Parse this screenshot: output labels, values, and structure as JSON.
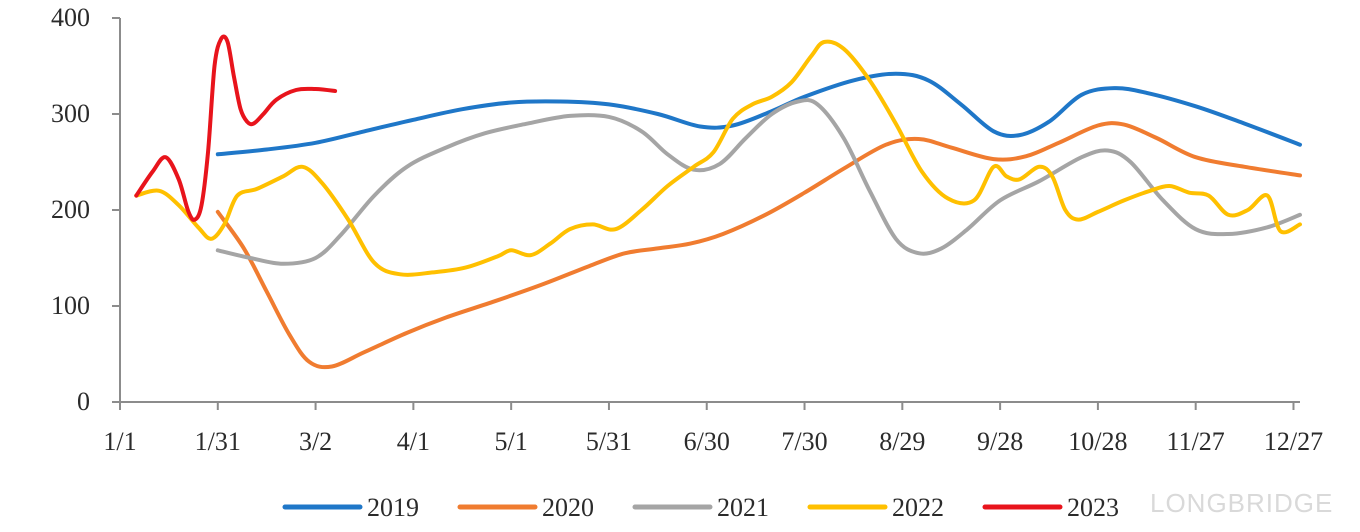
{
  "chart_data": {
    "type": "line",
    "title": "",
    "xlabel": "",
    "ylabel": "",
    "x_tick_labels": [
      "1/1",
      "1/31",
      "3/2",
      "4/1",
      "5/1",
      "5/31",
      "6/30",
      "7/30",
      "8/29",
      "9/28",
      "10/28",
      "11/27",
      "12/27"
    ],
    "x_tick_days": [
      0,
      30,
      60,
      90,
      120,
      150,
      180,
      210,
      240,
      270,
      300,
      330,
      360
    ],
    "xlim": [
      0,
      362
    ],
    "ylim": [
      0,
      400
    ],
    "y_ticks": [
      0,
      100,
      200,
      300,
      400
    ],
    "y_tick_labels": [
      "0",
      "100",
      "200",
      "300",
      "400"
    ],
    "grid": false,
    "legend_position": "bottom",
    "series": [
      {
        "name": "2019",
        "color": "#1F77C8",
        "points": [
          [
            30,
            258
          ],
          [
            45,
            263
          ],
          [
            60,
            270
          ],
          [
            75,
            282
          ],
          [
            90,
            294
          ],
          [
            105,
            305
          ],
          [
            120,
            312
          ],
          [
            135,
            313
          ],
          [
            150,
            310
          ],
          [
            165,
            300
          ],
          [
            178,
            287
          ],
          [
            188,
            288
          ],
          [
            200,
            303
          ],
          [
            210,
            318
          ],
          [
            225,
            335
          ],
          [
            238,
            342
          ],
          [
            248,
            335
          ],
          [
            258,
            310
          ],
          [
            268,
            282
          ],
          [
            276,
            278
          ],
          [
            285,
            292
          ],
          [
            295,
            320
          ],
          [
            305,
            327
          ],
          [
            315,
            322
          ],
          [
            330,
            308
          ],
          [
            345,
            290
          ],
          [
            362,
            268
          ]
        ]
      },
      {
        "name": "2020",
        "color": "#F07C30",
        "points": [
          [
            30,
            198
          ],
          [
            38,
            160
          ],
          [
            45,
            115
          ],
          [
            52,
            70
          ],
          [
            58,
            42
          ],
          [
            65,
            37
          ],
          [
            75,
            52
          ],
          [
            88,
            72
          ],
          [
            100,
            88
          ],
          [
            115,
            105
          ],
          [
            130,
            123
          ],
          [
            145,
            143
          ],
          [
            155,
            155
          ],
          [
            165,
            160
          ],
          [
            175,
            165
          ],
          [
            185,
            175
          ],
          [
            198,
            195
          ],
          [
            210,
            218
          ],
          [
            222,
            243
          ],
          [
            235,
            268
          ],
          [
            245,
            274
          ],
          [
            255,
            265
          ],
          [
            268,
            253
          ],
          [
            278,
            256
          ],
          [
            288,
            270
          ],
          [
            300,
            288
          ],
          [
            308,
            289
          ],
          [
            318,
            275
          ],
          [
            330,
            255
          ],
          [
            345,
            245
          ],
          [
            362,
            236
          ]
        ]
      },
      {
        "name": "2021",
        "color": "#A5A5A5",
        "points": [
          [
            30,
            158
          ],
          [
            40,
            150
          ],
          [
            50,
            144
          ],
          [
            60,
            150
          ],
          [
            68,
            175
          ],
          [
            78,
            215
          ],
          [
            88,
            245
          ],
          [
            100,
            265
          ],
          [
            112,
            280
          ],
          [
            125,
            290
          ],
          [
            138,
            298
          ],
          [
            150,
            297
          ],
          [
            160,
            282
          ],
          [
            168,
            258
          ],
          [
            176,
            242
          ],
          [
            184,
            248
          ],
          [
            192,
            275
          ],
          [
            200,
            300
          ],
          [
            208,
            313
          ],
          [
            214,
            310
          ],
          [
            222,
            275
          ],
          [
            230,
            220
          ],
          [
            238,
            170
          ],
          [
            245,
            155
          ],
          [
            252,
            160
          ],
          [
            260,
            180
          ],
          [
            270,
            210
          ],
          [
            282,
            230
          ],
          [
            295,
            255
          ],
          [
            303,
            262
          ],
          [
            310,
            250
          ],
          [
            320,
            210
          ],
          [
            330,
            180
          ],
          [
            340,
            175
          ],
          [
            352,
            182
          ],
          [
            362,
            195
          ]
        ]
      },
      {
        "name": "2022",
        "color": "#FFC000",
        "points": [
          [
            5,
            215
          ],
          [
            12,
            220
          ],
          [
            18,
            205
          ],
          [
            24,
            182
          ],
          [
            28,
            170
          ],
          [
            32,
            185
          ],
          [
            36,
            215
          ],
          [
            42,
            222
          ],
          [
            50,
            235
          ],
          [
            56,
            245
          ],
          [
            62,
            228
          ],
          [
            70,
            190
          ],
          [
            78,
            145
          ],
          [
            86,
            133
          ],
          [
            96,
            135
          ],
          [
            106,
            140
          ],
          [
            116,
            152
          ],
          [
            120,
            158
          ],
          [
            126,
            153
          ],
          [
            132,
            165
          ],
          [
            138,
            180
          ],
          [
            145,
            185
          ],
          [
            152,
            180
          ],
          [
            160,
            200
          ],
          [
            168,
            225
          ],
          [
            176,
            245
          ],
          [
            182,
            260
          ],
          [
            188,
            295
          ],
          [
            194,
            310
          ],
          [
            200,
            318
          ],
          [
            206,
            333
          ],
          [
            212,
            360
          ],
          [
            216,
            375
          ],
          [
            222,
            368
          ],
          [
            230,
            335
          ],
          [
            238,
            290
          ],
          [
            246,
            240
          ],
          [
            254,
            212
          ],
          [
            262,
            210
          ],
          [
            268,
            245
          ],
          [
            272,
            235
          ],
          [
            276,
            232
          ],
          [
            282,
            245
          ],
          [
            286,
            235
          ],
          [
            290,
            200
          ],
          [
            294,
            190
          ],
          [
            300,
            198
          ],
          [
            308,
            210
          ],
          [
            316,
            220
          ],
          [
            322,
            225
          ],
          [
            328,
            218
          ],
          [
            334,
            215
          ],
          [
            340,
            195
          ],
          [
            346,
            200
          ],
          [
            352,
            215
          ],
          [
            356,
            178
          ],
          [
            362,
            185
          ]
        ]
      },
      {
        "name": "2023",
        "color": "#E8141C",
        "points": [
          [
            5,
            215
          ],
          [
            10,
            240
          ],
          [
            14,
            255
          ],
          [
            18,
            232
          ],
          [
            21,
            198
          ],
          [
            23,
            190
          ],
          [
            25,
            205
          ],
          [
            27,
            260
          ],
          [
            29,
            350
          ],
          [
            31,
            378
          ],
          [
            33,
            375
          ],
          [
            35,
            338
          ],
          [
            37,
            305
          ],
          [
            39,
            292
          ],
          [
            41,
            290
          ],
          [
            44,
            300
          ],
          [
            48,
            315
          ],
          [
            54,
            325
          ],
          [
            60,
            326
          ],
          [
            66,
            324
          ]
        ]
      }
    ]
  },
  "watermark": {
    "text": "LONGBRIDGE"
  }
}
